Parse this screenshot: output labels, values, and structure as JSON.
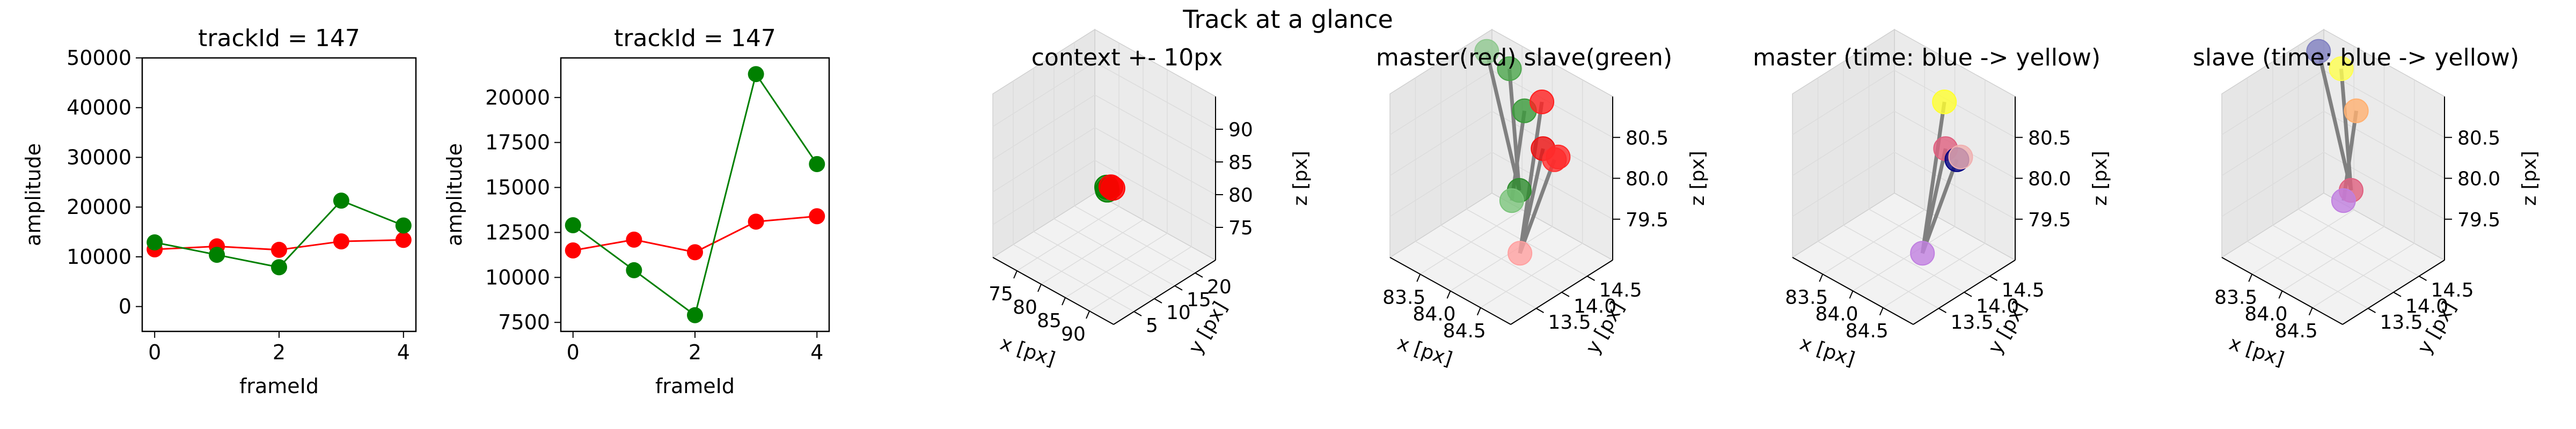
{
  "suptitle": "Track at a glance",
  "colors": {
    "master": "#ff0000",
    "slave": "#008000",
    "segment": "#808080",
    "pane": "#f2f2f2",
    "grid": "#dcdcdc"
  },
  "chart_data": [
    {
      "type": "line",
      "title": "trackId = 147",
      "xlabel": "frameId",
      "ylabel": "amplitude",
      "xlim": [
        -0.2,
        4.2
      ],
      "ylim": [
        -5000,
        50000
      ],
      "xticks": [
        0,
        2,
        4
      ],
      "yticks": [
        0,
        10000,
        20000,
        30000,
        40000,
        50000
      ],
      "series": [
        {
          "color": "#ff0000",
          "x": [
            0,
            1,
            2,
            3,
            4
          ],
          "y": [
            11500,
            12100,
            11400,
            13100,
            13400
          ]
        },
        {
          "color": "#008000",
          "x": [
            0,
            1,
            2,
            3,
            4
          ],
          "y": [
            12900,
            10400,
            7900,
            21300,
            16300
          ]
        }
      ]
    },
    {
      "type": "line",
      "title": "trackId = 147",
      "xlabel": "frameId",
      "ylabel": "amplitude",
      "xlim": [
        -0.2,
        4.2
      ],
      "ylim": [
        7000,
        22200
      ],
      "xticks": [
        0,
        2,
        4
      ],
      "yticks": [
        7500,
        10000,
        12500,
        15000,
        17500,
        20000
      ],
      "series": [
        {
          "color": "#ff0000",
          "x": [
            0,
            1,
            2,
            3,
            4
          ],
          "y": [
            11500,
            12100,
            11400,
            13100,
            13400
          ]
        },
        {
          "color": "#008000",
          "x": [
            0,
            1,
            2,
            3,
            4
          ],
          "y": [
            12900,
            10400,
            7900,
            21300,
            16300
          ]
        }
      ]
    },
    {
      "type": "scatter3d",
      "title": "context +- 10px",
      "xlabel": "x [px]",
      "ylabel": "y [px]",
      "zlabel": "z [px]",
      "xlim": [
        73,
        95
      ],
      "ylim": [
        3,
        24
      ],
      "zlim": [
        71,
        92
      ],
      "xticks": [
        "75",
        "80",
        "85",
        "90"
      ],
      "yticks": [
        "5",
        "10",
        "15",
        "20"
      ],
      "zticks": [
        "75",
        "80",
        "85",
        "90"
      ],
      "points": [
        {
          "x": 84.0,
          "y": 14.0,
          "z": 80.0,
          "color": "#008000"
        },
        {
          "x": 84.3,
          "y": 13.8,
          "z": 79.8,
          "color": "#008000"
        },
        {
          "x": 84.6,
          "y": 14.2,
          "z": 80.2,
          "color": "#ff0000"
        },
        {
          "x": 84.8,
          "y": 14.4,
          "z": 80.0,
          "color": "#ff0000"
        }
      ],
      "segments": []
    },
    {
      "type": "scatter3d",
      "title": "master(red) slave(green)",
      "xlabel": "x [px]",
      "ylabel": "y [px]",
      "zlabel": "z [px]",
      "xlim": [
        83.3,
        84.9
      ],
      "ylim": [
        13.2,
        14.8
      ],
      "zlim": [
        79.2,
        80.9
      ],
      "xticks": [
        "83.5",
        "84.0",
        "84.5"
      ],
      "yticks": [
        "13.5",
        "14.0",
        "14.5"
      ],
      "zticks": [
        "79.5",
        "80.0",
        "80.5"
      ],
      "points": [
        {
          "x": 83.4,
          "y": 14.6,
          "z": 80.8,
          "color": "#90c890"
        },
        {
          "x": 83.7,
          "y": 14.6,
          "z": 80.75,
          "color": "#4ca64c"
        },
        {
          "x": 83.9,
          "y": 14.6,
          "z": 80.4,
          "color": "#3a9a3a"
        },
        {
          "x": 84.0,
          "y": 14.4,
          "z": 79.7,
          "color": "#2d8c2d"
        },
        {
          "x": 83.9,
          "y": 14.4,
          "z": 79.55,
          "color": "#7cc47c"
        },
        {
          "x": 84.3,
          "y": 14.4,
          "z": 80.75,
          "color": "#ff2020"
        },
        {
          "x": 84.4,
          "y": 14.3,
          "z": 80.35,
          "color": "#ee1010"
        },
        {
          "x": 84.55,
          "y": 14.3,
          "z": 80.3,
          "color": "#ff3030"
        },
        {
          "x": 84.6,
          "y": 14.3,
          "z": 80.35,
          "color": "#ff2a2a"
        },
        {
          "x": 84.6,
          "y": 13.7,
          "z": 79.6,
          "color": "#ffa0a0"
        }
      ],
      "segments": [
        [
          0,
          3
        ],
        [
          1,
          3
        ],
        [
          2,
          4
        ],
        [
          5,
          9
        ],
        [
          6,
          9
        ],
        [
          7,
          9
        ]
      ]
    },
    {
      "type": "scatter3d",
      "title": "master (time: blue -> yellow)",
      "xlabel": "x [px]",
      "ylabel": "y [px]",
      "zlabel": "z [px]",
      "xlim": [
        83.3,
        84.9
      ],
      "ylim": [
        13.2,
        14.8
      ],
      "zlim": [
        79.2,
        80.9
      ],
      "xticks": [
        "83.5",
        "84.0",
        "84.5"
      ],
      "yticks": [
        "13.5",
        "14.0",
        "14.5"
      ],
      "zticks": [
        "79.5",
        "80.0",
        "80.5"
      ],
      "points": [
        {
          "x": 84.3,
          "y": 14.4,
          "z": 80.75,
          "color": "#ffff30"
        },
        {
          "x": 84.4,
          "y": 14.3,
          "z": 80.35,
          "color": "#e06080"
        },
        {
          "x": 84.55,
          "y": 14.3,
          "z": 80.3,
          "color": "#000080"
        },
        {
          "x": 84.6,
          "y": 14.3,
          "z": 80.35,
          "color": "#f0b0b0"
        },
        {
          "x": 84.6,
          "y": 13.7,
          "z": 79.6,
          "color": "#c080e0"
        }
      ],
      "segments": [
        [
          0,
          4
        ],
        [
          1,
          4
        ],
        [
          2,
          4
        ]
      ]
    },
    {
      "type": "scatter3d",
      "title": "slave (time: blue -> yellow)",
      "xlabel": "x [px]",
      "ylabel": "y [px]",
      "zlabel": "z [px]",
      "xlim": [
        83.3,
        84.9
      ],
      "ylim": [
        13.2,
        14.8
      ],
      "zlim": [
        79.2,
        80.9
      ],
      "xticks": [
        "83.5",
        "84.0",
        "84.5"
      ],
      "yticks": [
        "13.5",
        "14.0",
        "14.5"
      ],
      "zticks": [
        "79.5",
        "80.0",
        "80.5"
      ],
      "points": [
        {
          "x": 83.4,
          "y": 14.6,
          "z": 80.8,
          "color": "#8080c0"
        },
        {
          "x": 83.7,
          "y": 14.6,
          "z": 80.75,
          "color": "#ffff50"
        },
        {
          "x": 83.9,
          "y": 14.6,
          "z": 80.4,
          "color": "#ffb070"
        },
        {
          "x": 84.0,
          "y": 14.4,
          "z": 79.7,
          "color": "#e06080"
        },
        {
          "x": 83.9,
          "y": 14.4,
          "z": 79.55,
          "color": "#c080e0"
        }
      ],
      "segments": [
        [
          0,
          3
        ],
        [
          1,
          3
        ],
        [
          2,
          4
        ]
      ]
    }
  ]
}
